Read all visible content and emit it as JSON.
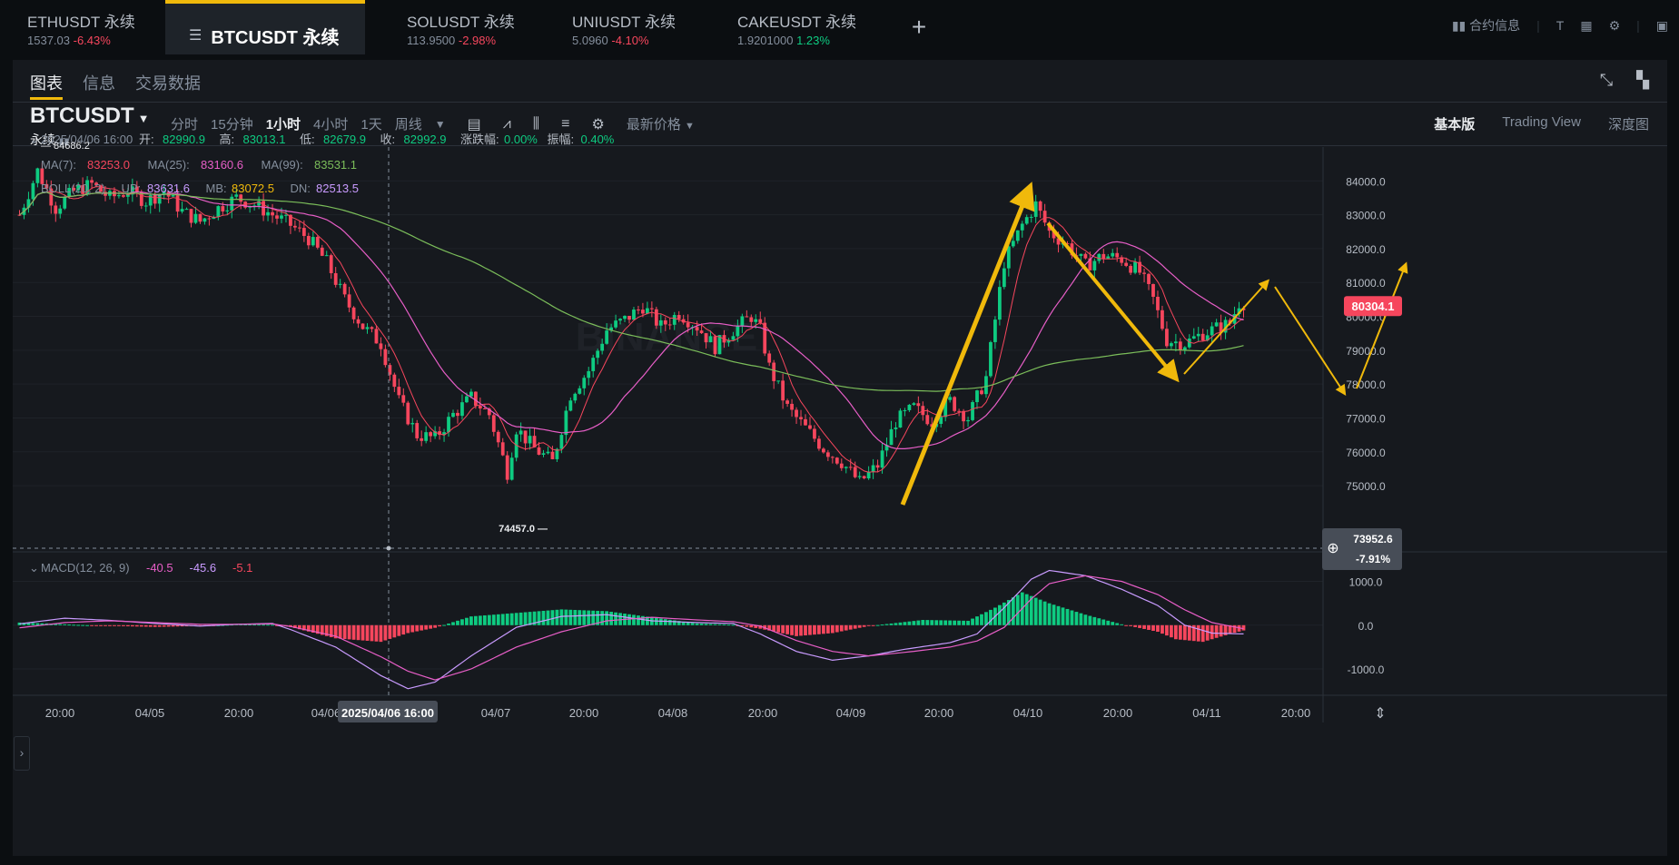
{
  "tabs": [
    {
      "symbol": "ETHUSDT 永续",
      "price": "1537.03",
      "change": "-6.43%",
      "dir": "neg"
    },
    {
      "symbol": "BTCUSDT 永续",
      "active": true
    },
    {
      "symbol": "SOLUSDT 永续",
      "price": "113.9500",
      "change": "-2.98%",
      "dir": "neg"
    },
    {
      "symbol": "UNIUSDT 永续",
      "price": "5.0960",
      "change": "-4.10%",
      "dir": "neg"
    },
    {
      "symbol": "CAKEUSDT 永续",
      "price": "1.9201000",
      "change": "1.23%",
      "dir": "pos"
    }
  ],
  "top_right": {
    "contract_info": "合约信息"
  },
  "subtabs": [
    "图表",
    "信息",
    "交易数据"
  ],
  "symbol": {
    "name": "BTCUSDT",
    "type": "永续"
  },
  "intervals": [
    "分时",
    "15分钟",
    "1小时",
    "4小时",
    "1天",
    "周线"
  ],
  "active_interval": "1小时",
  "price_type": "最新价格",
  "views": [
    "基本版",
    "Trading View",
    "深度图"
  ],
  "active_view": "基本版",
  "watermark": "BINANCE",
  "chart_data": {
    "type": "candlestick",
    "ohlc_header": {
      "time": "2025/04/06 16:00",
      "open_label": "开:",
      "open": "82990.9",
      "high_label": "高:",
      "high": "83013.1",
      "low_label": "低:",
      "low": "82679.9",
      "close_label": "收:",
      "close": "82992.9",
      "change_label": "涨跌幅:",
      "change": "0.00%",
      "amp_label": "振幅:",
      "amp": "0.40%"
    },
    "ma_legend": [
      {
        "label": "MA(7):",
        "value": "83253.0",
        "color": "#f6465d"
      },
      {
        "label": "MA(25):",
        "value": "83160.6",
        "color": "#e75ec7"
      },
      {
        "label": "MA(99):",
        "value": "83531.1",
        "color": "#7bbd5a"
      }
    ],
    "boll_legend": [
      {
        "label": "BOLL(20, 2)",
        "value": "",
        "color": "#848e9c"
      },
      {
        "label": "UP:",
        "value": "83631.6",
        "color": "#c99bff"
      },
      {
        "label": "MB:",
        "value": "83072.5",
        "color": "#f0b90b"
      },
      {
        "label": "DN:",
        "value": "82513.5",
        "color": "#c99bff"
      }
    ],
    "price_axis": [
      84000.0,
      83000.0,
      82000.0,
      81000.0,
      80000.0,
      79000.0,
      78000.0,
      77000.0,
      76000.0,
      75000.0
    ],
    "price_axis_labels": [
      "84000.0",
      "83000.0",
      "82000.0",
      "81000.0",
      "80000.0",
      "79000.0",
      "78000.0",
      "77000.0",
      "76000.0",
      "75000.0"
    ],
    "price_range": [
      73100,
      85000
    ],
    "x_labels": [
      "20:00",
      "04/05",
      "20:00",
      "04/06",
      "04/07",
      "20:00",
      "04/08",
      "20:00",
      "04/09",
      "20:00",
      "04/10",
      "20:00",
      "04/11",
      "20:00"
    ],
    "crosshair_time": "2025/04/06 16:00",
    "crosshair_price": "73952.6",
    "crosshair_pct": "-7.91%",
    "last_price": "80304.1",
    "high_marker": "84686.2",
    "low_marker": "74457.0",
    "macd_legend": [
      {
        "label": "MACD(12, 26, 9)",
        "value": "",
        "color": "#848e9c"
      },
      {
        "label": "",
        "value": "-40.5",
        "color": "#e75ec7"
      },
      {
        "label": "",
        "value": "-45.6",
        "color": "#c99bff"
      },
      {
        "label": "",
        "value": "-5.1",
        "color": "#f6465d"
      }
    ],
    "macd_axis": [
      1000.0,
      0.0,
      -1000.0
    ],
    "macd_axis_labels": [
      "1000.0",
      "0.0",
      "-1000.0"
    ],
    "macd_range": [
      -1600,
      1550
    ],
    "close_points": [
      [
        0,
        83000
      ],
      [
        4,
        84300
      ],
      [
        8,
        83200
      ],
      [
        12,
        83700
      ],
      [
        16,
        83900
      ],
      [
        20,
        83500
      ],
      [
        24,
        83700
      ],
      [
        28,
        83400
      ],
      [
        32,
        83700
      ],
      [
        36,
        83100
      ],
      [
        40,
        82800
      ],
      [
        44,
        83200
      ],
      [
        48,
        83500
      ],
      [
        52,
        83300
      ],
      [
        56,
        83000
      ],
      [
        60,
        82700
      ],
      [
        64,
        82300
      ],
      [
        68,
        81600
      ],
      [
        72,
        80500
      ],
      [
        76,
        79700
      ],
      [
        80,
        79200
      ],
      [
        84,
        77500
      ],
      [
        88,
        76500
      ],
      [
        92,
        76400
      ],
      [
        96,
        77100
      ],
      [
        100,
        77600
      ],
      [
        104,
        77100
      ],
      [
        108,
        75400
      ],
      [
        110,
        76700
      ],
      [
        114,
        76100
      ],
      [
        118,
        75700
      ],
      [
        122,
        77700
      ],
      [
        126,
        78400
      ],
      [
        130,
        79600
      ],
      [
        134,
        79900
      ],
      [
        138,
        80300
      ],
      [
        142,
        79700
      ],
      [
        146,
        80100
      ],
      [
        150,
        79700
      ],
      [
        154,
        79100
      ],
      [
        158,
        79600
      ],
      [
        162,
        80000
      ],
      [
        164,
        79600
      ],
      [
        166,
        78500
      ],
      [
        170,
        77300
      ],
      [
        174,
        76700
      ],
      [
        178,
        76100
      ],
      [
        182,
        75700
      ],
      [
        186,
        75100
      ],
      [
        190,
        75600
      ],
      [
        194,
        76900
      ],
      [
        198,
        77300
      ],
      [
        202,
        76900
      ],
      [
        206,
        77500
      ],
      [
        210,
        77000
      ],
      [
        214,
        78200
      ],
      [
        218,
        81600
      ],
      [
        222,
        82700
      ],
      [
        225,
        83300
      ],
      [
        228,
        82500
      ],
      [
        232,
        82100
      ],
      [
        236,
        81500
      ],
      [
        240,
        81800
      ],
      [
        244,
        81700
      ],
      [
        248,
        81300
      ],
      [
        251,
        80500
      ],
      [
        254,
        79300
      ],
      [
        258,
        79200
      ],
      [
        262,
        79500
      ],
      [
        266,
        79700
      ],
      [
        268,
        79800
      ],
      [
        270,
        80400
      ]
    ],
    "macd_hist_points": [
      [
        0,
        60
      ],
      [
        6,
        40
      ],
      [
        12,
        10
      ],
      [
        20,
        -15
      ],
      [
        30,
        -40
      ],
      [
        40,
        -20
      ],
      [
        48,
        20
      ],
      [
        56,
        10
      ],
      [
        60,
        -40
      ],
      [
        70,
        -300
      ],
      [
        80,
        -380
      ],
      [
        86,
        -180
      ],
      [
        92,
        -60
      ],
      [
        100,
        200
      ],
      [
        110,
        280
      ],
      [
        120,
        360
      ],
      [
        130,
        320
      ],
      [
        140,
        180
      ],
      [
        150,
        40
      ],
      [
        158,
        10
      ],
      [
        164,
        -80
      ],
      [
        172,
        -250
      ],
      [
        180,
        -180
      ],
      [
        188,
        -20
      ],
      [
        200,
        120
      ],
      [
        210,
        100
      ],
      [
        216,
        400
      ],
      [
        222,
        750
      ],
      [
        228,
        500
      ],
      [
        236,
        240
      ],
      [
        244,
        20
      ],
      [
        252,
        -150
      ],
      [
        256,
        -320
      ],
      [
        262,
        -380
      ],
      [
        268,
        -200
      ],
      [
        271,
        -120
      ]
    ],
    "macd_dif_points": [
      [
        0,
        30
      ],
      [
        10,
        160
      ],
      [
        20,
        110
      ],
      [
        30,
        40
      ],
      [
        40,
        -20
      ],
      [
        48,
        20
      ],
      [
        56,
        40
      ],
      [
        60,
        -100
      ],
      [
        70,
        -500
      ],
      [
        80,
        -1150
      ],
      [
        86,
        -1450
      ],
      [
        92,
        -1300
      ],
      [
        100,
        -700
      ],
      [
        110,
        -50
      ],
      [
        120,
        200
      ],
      [
        130,
        240
      ],
      [
        140,
        100
      ],
      [
        150,
        60
      ],
      [
        158,
        40
      ],
      [
        164,
        -200
      ],
      [
        172,
        -600
      ],
      [
        180,
        -800
      ],
      [
        188,
        -700
      ],
      [
        196,
        -550
      ],
      [
        206,
        -400
      ],
      [
        212,
        -200
      ],
      [
        218,
        400
      ],
      [
        224,
        1050
      ],
      [
        228,
        1250
      ],
      [
        236,
        1130
      ],
      [
        244,
        820
      ],
      [
        252,
        450
      ],
      [
        258,
        0
      ],
      [
        264,
        -180
      ],
      [
        271,
        -200
      ]
    ],
    "macd_dea_points": [
      [
        0,
        -60
      ],
      [
        10,
        60
      ],
      [
        20,
        100
      ],
      [
        30,
        60
      ],
      [
        40,
        20
      ],
      [
        48,
        20
      ],
      [
        56,
        30
      ],
      [
        60,
        -30
      ],
      [
        70,
        -250
      ],
      [
        80,
        -720
      ],
      [
        86,
        -1050
      ],
      [
        92,
        -1250
      ],
      [
        100,
        -1000
      ],
      [
        110,
        -500
      ],
      [
        120,
        -150
      ],
      [
        130,
        100
      ],
      [
        140,
        180
      ],
      [
        150,
        120
      ],
      [
        158,
        80
      ],
      [
        164,
        -20
      ],
      [
        172,
        -350
      ],
      [
        180,
        -600
      ],
      [
        188,
        -700
      ],
      [
        196,
        -620
      ],
      [
        206,
        -500
      ],
      [
        212,
        -360
      ],
      [
        218,
        -50
      ],
      [
        224,
        600
      ],
      [
        228,
        950
      ],
      [
        236,
        1130
      ],
      [
        244,
        1000
      ],
      [
        252,
        700
      ],
      [
        258,
        350
      ],
      [
        264,
        60
      ],
      [
        271,
        -80
      ]
    ]
  },
  "annotations": {
    "arrow_color": "#f0b90b"
  }
}
